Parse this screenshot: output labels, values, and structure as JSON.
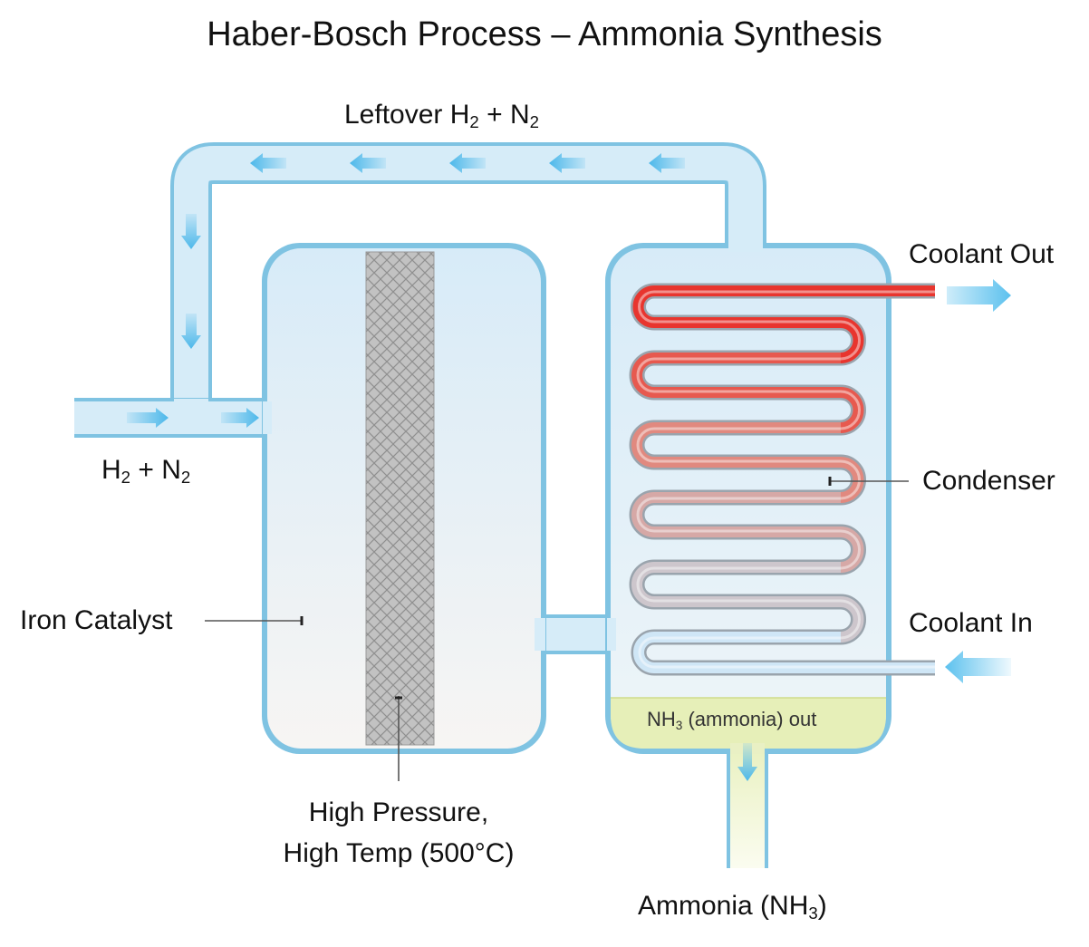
{
  "title": "Haber-Bosch Process – Ammonia Synthesis",
  "labels": {
    "leftover": {
      "main": "Leftover H",
      "s1": "2",
      "mid": " + N",
      "s2": "2"
    },
    "feed": {
      "main": "H",
      "s1": "2",
      "mid": " + N",
      "s2": "2"
    },
    "coolant_out": "Coolant Out",
    "condenser": "Condenser",
    "coolant_in": "Coolant In",
    "iron_catalyst": "Iron Catalyst",
    "ammonia_out_zone": {
      "main": "NH",
      "sub": "3",
      "rest": " (ammonia) out"
    },
    "conditions_line1": "High Pressure,",
    "conditions_line2": "High Temp (500°C)",
    "product": {
      "main": "Ammonia (NH",
      "sub": "3",
      "rest": ")"
    }
  },
  "colors": {
    "vessel_outline": "#7fc3e2",
    "vessel_fill_top": "#dcedf8",
    "arrow": "#4cb8ea",
    "coil_hot": "#e8352e",
    "coil_cold": "#cfe6f6",
    "ammonia_liquid": "#e6efb8",
    "catalyst_bed": "#b9b9b9"
  }
}
